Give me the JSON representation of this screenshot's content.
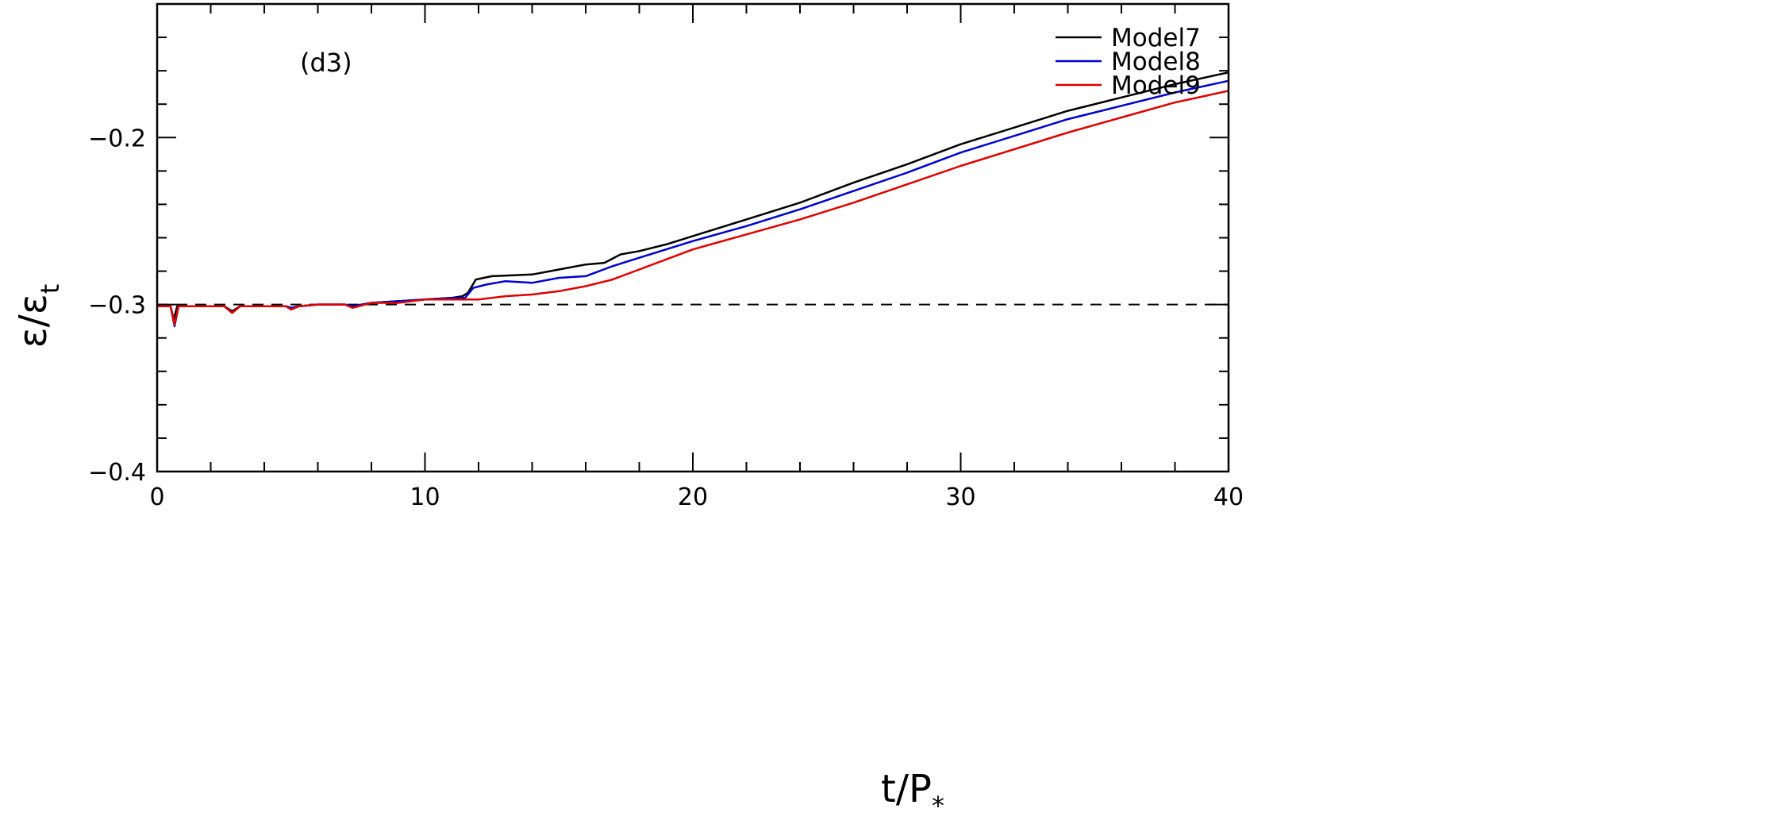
{
  "chart_data": {
    "type": "line",
    "panel_label": "(d3)",
    "xlabel": {
      "main": "t/P",
      "sub": "*"
    },
    "ylabel": {
      "main": "ε/ε",
      "sub": "t"
    },
    "xlim": [
      0,
      40
    ],
    "ylim": [
      -0.4,
      -0.12
    ],
    "x_ticks": [
      0,
      10,
      20,
      30,
      40
    ],
    "x_tick_labels": [
      "0",
      "10",
      "20",
      "30",
      "40"
    ],
    "y_ticks": [
      -0.4,
      -0.3,
      -0.2
    ],
    "y_tick_labels": [
      "−0.4",
      "−0.3",
      "−0.2"
    ],
    "reference_line": {
      "y": -0.3,
      "style": "dashed",
      "color": "#000000"
    },
    "legend_position": "top-right",
    "series": [
      {
        "name": "Model7",
        "color": "#000000",
        "points": [
          [
            0,
            -0.301
          ],
          [
            0.5,
            -0.301
          ],
          [
            0.62,
            -0.309
          ],
          [
            0.75,
            -0.301
          ],
          [
            2.5,
            -0.301
          ],
          [
            2.8,
            -0.304
          ],
          [
            3.1,
            -0.301
          ],
          [
            4.8,
            -0.301
          ],
          [
            5.0,
            -0.302
          ],
          [
            5.3,
            -0.301
          ],
          [
            6,
            -0.3
          ],
          [
            7,
            -0.3
          ],
          [
            7.3,
            -0.301
          ],
          [
            8,
            -0.299
          ],
          [
            9,
            -0.298
          ],
          [
            10,
            -0.297
          ],
          [
            11,
            -0.296
          ],
          [
            11.4,
            -0.295
          ],
          [
            11.6,
            -0.293
          ],
          [
            11.9,
            -0.285
          ],
          [
            12.5,
            -0.283
          ],
          [
            14,
            -0.282
          ],
          [
            15,
            -0.279
          ],
          [
            16,
            -0.276
          ],
          [
            16.7,
            -0.275
          ],
          [
            17.3,
            -0.27
          ],
          [
            18,
            -0.268
          ],
          [
            19,
            -0.264
          ],
          [
            20,
            -0.259
          ],
          [
            22,
            -0.249
          ],
          [
            24,
            -0.239
          ],
          [
            26,
            -0.227
          ],
          [
            28,
            -0.216
          ],
          [
            30,
            -0.204
          ],
          [
            32,
            -0.194
          ],
          [
            34,
            -0.184
          ],
          [
            36,
            -0.176
          ],
          [
            38,
            -0.168
          ],
          [
            40,
            -0.161
          ]
        ]
      },
      {
        "name": "Model8",
        "color": "#0000cc",
        "points": [
          [
            0,
            -0.301
          ],
          [
            0.5,
            -0.301
          ],
          [
            0.65,
            -0.313
          ],
          [
            0.8,
            -0.301
          ],
          [
            2.5,
            -0.301
          ],
          [
            2.8,
            -0.305
          ],
          [
            3.1,
            -0.301
          ],
          [
            4.8,
            -0.301
          ],
          [
            5.0,
            -0.302
          ],
          [
            5.3,
            -0.301
          ],
          [
            6,
            -0.3
          ],
          [
            7,
            -0.3
          ],
          [
            7.3,
            -0.301
          ],
          [
            8,
            -0.299
          ],
          [
            9,
            -0.298
          ],
          [
            10,
            -0.297
          ],
          [
            11,
            -0.296
          ],
          [
            11.5,
            -0.296
          ],
          [
            11.8,
            -0.29
          ],
          [
            12.3,
            -0.288
          ],
          [
            13,
            -0.286
          ],
          [
            14,
            -0.287
          ],
          [
            15,
            -0.284
          ],
          [
            16,
            -0.283
          ],
          [
            17,
            -0.277
          ],
          [
            18,
            -0.272
          ],
          [
            19,
            -0.267
          ],
          [
            20,
            -0.262
          ],
          [
            22,
            -0.253
          ],
          [
            24,
            -0.243
          ],
          [
            26,
            -0.232
          ],
          [
            28,
            -0.221
          ],
          [
            30,
            -0.209
          ],
          [
            32,
            -0.199
          ],
          [
            34,
            -0.189
          ],
          [
            36,
            -0.181
          ],
          [
            38,
            -0.173
          ],
          [
            40,
            -0.166
          ]
        ]
      },
      {
        "name": "Model9",
        "color": "#dd0000",
        "points": [
          [
            0,
            -0.301
          ],
          [
            0.5,
            -0.301
          ],
          [
            0.65,
            -0.312
          ],
          [
            0.8,
            -0.301
          ],
          [
            2.5,
            -0.301
          ],
          [
            2.8,
            -0.305
          ],
          [
            3.1,
            -0.301
          ],
          [
            4.8,
            -0.301
          ],
          [
            5.0,
            -0.303
          ],
          [
            5.3,
            -0.301
          ],
          [
            6,
            -0.3
          ],
          [
            7,
            -0.3
          ],
          [
            7.3,
            -0.302
          ],
          [
            8,
            -0.299
          ],
          [
            9,
            -0.299
          ],
          [
            10,
            -0.297
          ],
          [
            11,
            -0.297
          ],
          [
            12,
            -0.297
          ],
          [
            13,
            -0.295
          ],
          [
            14,
            -0.294
          ],
          [
            15,
            -0.292
          ],
          [
            16,
            -0.289
          ],
          [
            17,
            -0.285
          ],
          [
            18,
            -0.279
          ],
          [
            19,
            -0.273
          ],
          [
            20,
            -0.267
          ],
          [
            22,
            -0.258
          ],
          [
            24,
            -0.249
          ],
          [
            26,
            -0.239
          ],
          [
            28,
            -0.228
          ],
          [
            30,
            -0.217
          ],
          [
            32,
            -0.207
          ],
          [
            34,
            -0.197
          ],
          [
            36,
            -0.188
          ],
          [
            38,
            -0.179
          ],
          [
            40,
            -0.172
          ]
        ]
      }
    ]
  }
}
